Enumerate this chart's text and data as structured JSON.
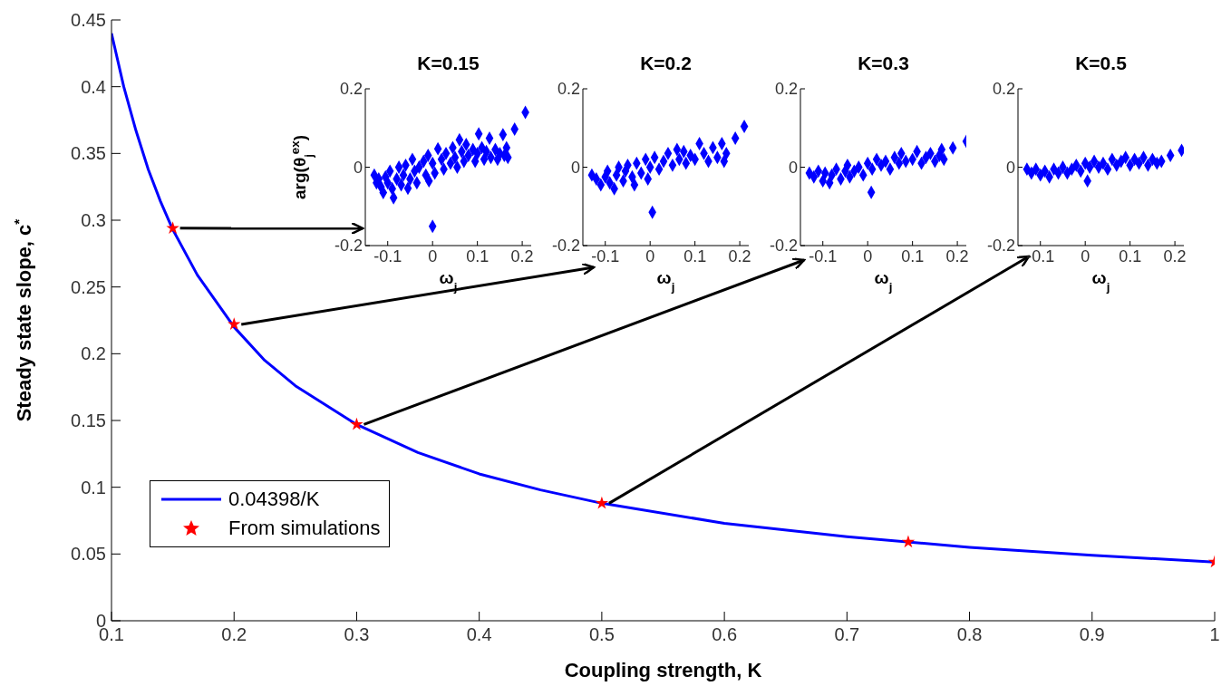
{
  "chart_data": [
    {
      "type": "line",
      "xlabel": "Coupling strength, K",
      "ylabel": "Steady state slope, c$^{*}$",
      "xlim": [
        0.1,
        1
      ],
      "ylim": [
        0,
        0.45
      ],
      "xticks": [
        0.1,
        0.2,
        0.3,
        0.4,
        0.5,
        0.6,
        0.7,
        0.8,
        0.9,
        1
      ],
      "yticks": [
        0,
        0.05,
        0.1,
        0.15,
        0.2,
        0.25,
        0.3,
        0.35,
        0.4,
        0.45
      ],
      "grid": false,
      "legend": "bottom left",
      "series": [
        {
          "name": "0.04398/K",
          "type": "line",
          "color": "#0000ff",
          "marker": "none",
          "x": [
            0.1,
            0.11,
            0.12,
            0.13,
            0.14,
            0.15,
            0.17,
            0.2,
            0.225,
            0.25,
            0.3,
            0.35,
            0.4,
            0.45,
            0.5,
            0.6,
            0.7,
            0.8,
            0.9,
            1
          ],
          "values": [
            0.44,
            0.4,
            0.367,
            0.338,
            0.314,
            0.293,
            0.259,
            0.22,
            0.195,
            0.176,
            0.147,
            0.126,
            0.11,
            0.098,
            0.088,
            0.073,
            0.063,
            0.055,
            0.049,
            0.044
          ]
        },
        {
          "name": "From simulations",
          "type": "scatter",
          "color": "#ff0000",
          "marker": "star",
          "x": [
            0.15,
            0.2,
            0.3,
            0.5,
            0.75,
            1
          ],
          "values": [
            0.294,
            0.222,
            0.147,
            0.088,
            0.059,
            0.044
          ]
        }
      ]
    },
    {
      "type": "scatter",
      "title": "K=0.15",
      "xlabel": "ω$_{j}$",
      "ylabel": "arg(θ$_{j}$$^{ex}$)",
      "xlim": [
        -0.15,
        0.22
      ],
      "ylim": [
        -0.2,
        0.2
      ],
      "xticks": [
        -0.1,
        0,
        0.1,
        0.2
      ],
      "yticks": [
        -0.2,
        0,
        0.2
      ],
      "marker": "diamond",
      "series": [
        {
          "color": "#0000ff",
          "x": [
            -0.13,
            -0.125,
            -0.12,
            -0.115,
            -0.11,
            -0.105,
            -0.1,
            -0.095,
            -0.09,
            -0.087,
            -0.08,
            -0.075,
            -0.07,
            -0.065,
            -0.06,
            -0.055,
            -0.05,
            -0.045,
            -0.04,
            -0.035,
            -0.03,
            -0.02,
            -0.015,
            -0.01,
            -0.008,
            0,
            0,
            0.005,
            0.012,
            0.02,
            0.025,
            0.03,
            0.04,
            0.045,
            0.05,
            0.055,
            0.06,
            0.065,
            0.07,
            0.075,
            0.08,
            0.09,
            0.095,
            0.1,
            0.103,
            0.11,
            0.115,
            0.12,
            0.127,
            0.13,
            0.14,
            0.145,
            0.15,
            0.157,
            0.16,
            0.165,
            0.168,
            0.183,
            0.207
          ],
          "values": [
            -0.02,
            -0.04,
            -0.03,
            -0.05,
            -0.065,
            -0.025,
            -0.04,
            -0.01,
            -0.055,
            -0.078,
            -0.03,
            0,
            -0.045,
            -0.02,
            0.005,
            -0.054,
            -0.03,
            0.02,
            -0.01,
            -0.04,
            0,
            0.015,
            -0.02,
            0.03,
            -0.035,
            0.01,
            -0.151,
            -0.015,
            0.047,
            0.02,
            -0.005,
            0.035,
            0.01,
            0.05,
            0.025,
            0,
            0.07,
            0.04,
            0.015,
            0.058,
            0.03,
            0.045,
            0.015,
            0.035,
            0.085,
            0.05,
            0.02,
            0.04,
            0.074,
            0.025,
            0.045,
            0.02,
            0.035,
            0.083,
            0.03,
            0.05,
            0.025,
            0.097,
            0.14
          ]
        }
      ]
    },
    {
      "type": "scatter",
      "title": "K=0.2",
      "xlabel": "ω$_{j}$",
      "xlim": [
        -0.15,
        0.22
      ],
      "ylim": [
        -0.2,
        0.2
      ],
      "xticks": [
        -0.1,
        0,
        0.1,
        0.2
      ],
      "yticks": [
        -0.2,
        0,
        0.2
      ],
      "marker": "diamond",
      "series": [
        {
          "color": "#0000ff",
          "x": [
            -0.13,
            -0.12,
            -0.11,
            -0.1,
            -0.095,
            -0.09,
            -0.08,
            -0.075,
            -0.07,
            -0.06,
            -0.055,
            -0.05,
            -0.04,
            -0.035,
            -0.03,
            -0.02,
            -0.01,
            -0.005,
            0.005,
            0,
            0.01,
            0.02,
            0.03,
            0.04,
            0.05,
            0.06,
            0.065,
            0.075,
            0.08,
            0.09,
            0.1,
            0.11,
            0.12,
            0.13,
            0.14,
            0.15,
            0.16,
            0.165,
            0.17,
            0.19,
            0.21
          ],
          "values": [
            -0.02,
            -0.03,
            -0.045,
            -0.025,
            -0.01,
            -0.04,
            -0.055,
            -0.02,
            0,
            -0.035,
            -0.01,
            0.005,
            -0.025,
            -0.045,
            0.01,
            -0.015,
            0.02,
            -0.03,
            -0.115,
            0,
            0.025,
            -0.005,
            0.015,
            0.035,
            0.005,
            0.045,
            0.02,
            0.04,
            0.01,
            0.03,
            0.02,
            0.06,
            0.035,
            0.015,
            0.05,
            0.025,
            0.06,
            0.015,
            0.035,
            0.074,
            0.104
          ]
        }
      ]
    },
    {
      "type": "scatter",
      "title": "K=0.3",
      "xlabel": "ω$_{j}$",
      "xlim": [
        -0.15,
        0.22
      ],
      "ylim": [
        -0.2,
        0.2
      ],
      "xticks": [
        -0.1,
        0,
        0.1,
        0.2
      ],
      "yticks": [
        -0.2,
        0,
        0.2
      ],
      "marker": "diamond",
      "series": [
        {
          "color": "#0000ff",
          "x": [
            -0.13,
            -0.12,
            -0.11,
            -0.1,
            -0.095,
            -0.085,
            -0.08,
            -0.07,
            -0.06,
            -0.05,
            -0.045,
            -0.04,
            -0.03,
            -0.02,
            -0.01,
            0,
            0.008,
            0.01,
            0.02,
            0.03,
            0.04,
            0.05,
            0.06,
            0.07,
            0.075,
            0.085,
            0.1,
            0.11,
            0.12,
            0.13,
            0.14,
            0.15,
            0.16,
            0.165,
            0.17,
            0.19,
            0.22
          ],
          "values": [
            -0.015,
            -0.025,
            -0.01,
            -0.035,
            -0.015,
            -0.04,
            -0.02,
            -0.005,
            -0.03,
            -0.01,
            0.005,
            -0.025,
            -0.01,
            0,
            -0.02,
            0.01,
            -0.064,
            -0.005,
            0.02,
            0.005,
            0.015,
            -0.005,
            0.025,
            0.01,
            0.035,
            0.015,
            0.02,
            0.04,
            0.01,
            0.025,
            0.035,
            0.015,
            0.03,
            0.045,
            0.02,
            0.049,
            0.066
          ]
        }
      ]
    },
    {
      "type": "scatter",
      "title": "K=0.5",
      "xlabel": "ω$_{j}$",
      "xlim": [
        -0.15,
        0.22
      ],
      "ylim": [
        -0.2,
        0.2
      ],
      "xticks": [
        -0.1,
        0,
        0.1,
        0.2
      ],
      "yticks": [
        -0.2,
        0,
        0.2
      ],
      "marker": "diamond",
      "series": [
        {
          "color": "#0000ff",
          "x": [
            -0.13,
            -0.12,
            -0.11,
            -0.1,
            -0.09,
            -0.08,
            -0.07,
            -0.06,
            -0.05,
            -0.04,
            -0.03,
            -0.02,
            -0.01,
            0,
            0.005,
            0.01,
            0.02,
            0.03,
            0.04,
            0.05,
            0.06,
            0.07,
            0.08,
            0.09,
            0.1,
            0.11,
            0.12,
            0.13,
            0.14,
            0.15,
            0.16,
            0.17,
            0.19,
            0.215
          ],
          "values": [
            -0.005,
            -0.015,
            -0.005,
            -0.02,
            -0.01,
            -0.025,
            -0.005,
            -0.015,
            0,
            -0.015,
            -0.005,
            0.005,
            -0.01,
            0.01,
            -0.035,
            0,
            0.015,
            0,
            0.01,
            -0.005,
            0.02,
            0.005,
            0.015,
            0.025,
            0.005,
            0.02,
            0.01,
            0.025,
            0.005,
            0.02,
            0.01,
            0.015,
            0.03,
            0.043
          ]
        }
      ]
    }
  ]
}
